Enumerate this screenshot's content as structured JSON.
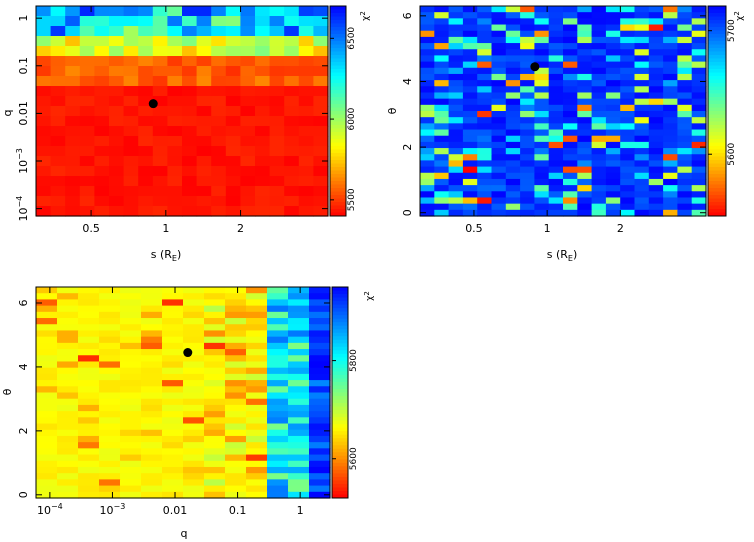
{
  "colormap": [
    "#ff0000",
    "#ffff00",
    "#00ffff",
    "#0000ff"
  ],
  "chart_data": [
    {
      "id": "sq",
      "type": "heatmap",
      "title": "",
      "xlabel": "s (R",
      "xlabel_sub": "E",
      "xlabel_close": ")",
      "ylabel": "q",
      "colorbar_label": "χ",
      "colorbar_label_sup": "2",
      "xscale": "log",
      "yscale": "log",
      "xlim": [
        0.3,
        4.5
      ],
      "ylim": [
        7e-05,
        1.8
      ],
      "x_ticks": [
        {
          "v": 0.5,
          "label": "0.5"
        },
        {
          "v": 1,
          "label": "1"
        },
        {
          "v": 2,
          "label": "2"
        }
      ],
      "y_ticks": [
        {
          "v": 0.0001,
          "label": "10",
          "sup": "−4"
        },
        {
          "v": 0.001,
          "label": "10",
          "sup": "−3"
        },
        {
          "v": 0.01,
          "label": "0.01"
        },
        {
          "v": 0.1,
          "label": "0.1"
        },
        {
          "v": 1,
          "label": "1"
        }
      ],
      "cbar_range": [
        5400,
        6700
      ],
      "cbar_ticks": [
        {
          "v": 5500,
          "label": "5500"
        },
        {
          "v": 6000,
          "label": "6000"
        },
        {
          "v": 6500,
          "label": "6500"
        }
      ],
      "best_fit": {
        "x": 0.89,
        "y": 0.016
      }
    },
    {
      "id": "st",
      "type": "heatmap",
      "title": "",
      "xlabel": "s (R",
      "xlabel_sub": "E",
      "xlabel_close": ")",
      "ylabel": "θ",
      "colorbar_label": "χ",
      "colorbar_label_sup": "2",
      "xscale": "log",
      "yscale": "linear",
      "xlim": [
        0.3,
        4.5
      ],
      "ylim": [
        -0.1,
        6.3
      ],
      "x_ticks": [
        {
          "v": 0.5,
          "label": "0.5"
        },
        {
          "v": 1,
          "label": "1"
        },
        {
          "v": 2,
          "label": "2"
        }
      ],
      "y_ticks": [
        {
          "v": 0,
          "label": "0"
        },
        {
          "v": 2,
          "label": "2"
        },
        {
          "v": 4,
          "label": "4"
        },
        {
          "v": 6,
          "label": "6"
        }
      ],
      "cbar_range": [
        5550,
        5720
      ],
      "cbar_ticks": [
        {
          "v": 5600,
          "label": "5600"
        },
        {
          "v": 5700,
          "label": "5700"
        }
      ],
      "best_fit": {
        "x": 0.89,
        "y": 4.45
      }
    },
    {
      "id": "qt",
      "type": "heatmap",
      "title": "",
      "xlabel": "q",
      "ylabel": "θ",
      "colorbar_label": "χ",
      "colorbar_label_sup": "2",
      "xscale": "log",
      "yscale": "linear",
      "xlim": [
        6e-05,
        3
      ],
      "ylim": [
        -0.1,
        6.5
      ],
      "x_ticks": [
        {
          "v": 0.0001,
          "label": "10",
          "sup": "−4"
        },
        {
          "v": 0.001,
          "label": "10",
          "sup": "−3"
        },
        {
          "v": 0.01,
          "label": "0.01"
        },
        {
          "v": 0.1,
          "label": "0.1"
        },
        {
          "v": 1,
          "label": "1"
        }
      ],
      "y_ticks": [
        {
          "v": 0,
          "label": "0"
        },
        {
          "v": 2,
          "label": "2"
        },
        {
          "v": 4,
          "label": "4"
        },
        {
          "v": 6,
          "label": "6"
        }
      ],
      "cbar_range": [
        5520,
        5950
      ],
      "cbar_ticks": [
        {
          "v": 5600,
          "label": "5600"
        },
        {
          "v": 5800,
          "label": "5800"
        }
      ],
      "best_fit": {
        "x": 0.016,
        "y": 4.45
      }
    }
  ]
}
